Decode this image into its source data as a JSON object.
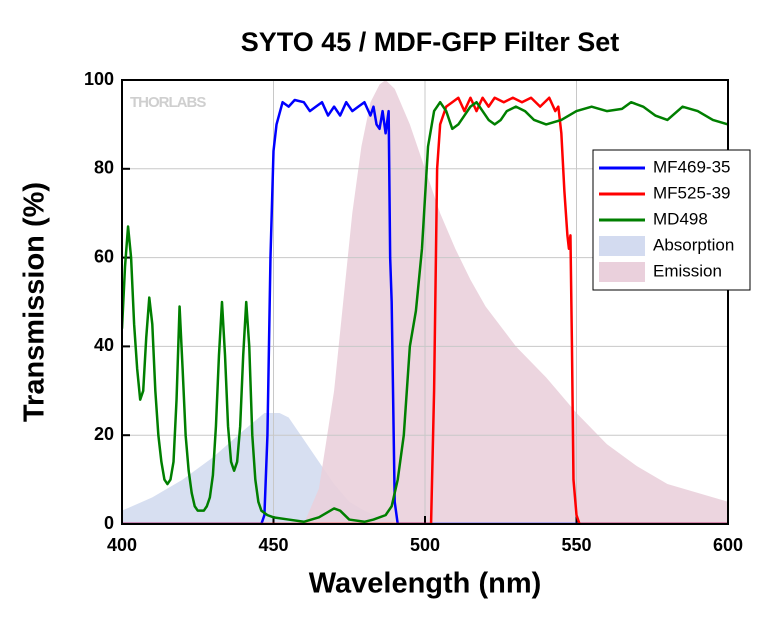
{
  "chart_data": {
    "type": "line",
    "title": "SYTO 45 / MDF-GFP Filter Set",
    "xlabel": "Wavelength (nm)",
    "ylabel": "Transmission (%)",
    "watermark": "THORLABS",
    "xlim": [
      400,
      600
    ],
    "xticks": [
      400,
      450,
      500,
      550,
      600
    ],
    "ylim": [
      0,
      100
    ],
    "yticks": [
      0,
      20,
      40,
      60,
      80,
      100
    ],
    "grid": true,
    "legend": "upper right",
    "series": [
      {
        "name": "MF469-35",
        "color": "#0000ff",
        "fill": false,
        "x": [
          400,
          446,
          447,
          448,
          449,
          450,
          451,
          453,
          455,
          457,
          460,
          462,
          464,
          466,
          468,
          470,
          472,
          474,
          476,
          478,
          480,
          482,
          483,
          484,
          485,
          486,
          487,
          488,
          488.5,
          489,
          490,
          491,
          600
        ],
        "values": [
          0,
          0,
          2,
          20,
          60,
          84,
          90,
          95,
          94,
          95.5,
          95,
          93,
          94,
          95,
          92,
          94,
          92,
          95,
          93,
          94,
          95,
          92,
          94,
          90,
          89,
          93,
          88,
          93,
          60,
          50,
          5,
          0,
          0
        ]
      },
      {
        "name": "MF525-39",
        "color": "#ff0000",
        "fill": false,
        "x": [
          400,
          502,
          503,
          504,
          505,
          507,
          509,
          511,
          513,
          515,
          517,
          519,
          521,
          523,
          526,
          529,
          532,
          535,
          538,
          541,
          543,
          544,
          545,
          546,
          547,
          547.5,
          548,
          548.5,
          549,
          550,
          551,
          600
        ],
        "values": [
          0,
          0,
          30,
          80,
          90,
          94,
          95,
          96,
          93,
          96,
          93,
          96,
          94,
          96,
          95,
          96,
          95,
          96,
          94,
          96,
          93,
          94,
          88,
          75,
          65,
          62,
          65,
          40,
          10,
          2,
          0,
          0
        ]
      },
      {
        "name": "MD498",
        "color": "#007f00",
        "fill": false,
        "x": [
          400,
          401,
          402,
          403,
          404,
          405,
          406,
          407,
          408,
          409,
          410,
          411,
          412,
          413,
          414,
          415,
          416,
          417,
          418,
          419,
          420,
          421,
          422,
          423,
          424,
          425,
          426,
          427,
          428,
          429,
          430,
          431,
          432,
          433,
          434,
          435,
          436,
          437,
          438,
          439,
          440,
          441,
          442,
          443,
          444,
          445,
          446,
          448,
          450,
          455,
          460,
          465,
          470,
          472,
          475,
          480,
          483,
          487,
          489,
          491,
          493,
          495,
          497,
          499,
          501,
          503,
          505,
          507,
          509,
          511,
          513,
          515,
          517,
          519,
          521,
          523,
          525,
          527,
          530,
          533,
          536,
          540,
          545,
          550,
          555,
          560,
          565,
          568,
          572,
          576,
          580,
          585,
          590,
          595,
          600
        ],
        "values": [
          44,
          58,
          67,
          60,
          45,
          35,
          28,
          30,
          42,
          51,
          45,
          30,
          20,
          14,
          10,
          9,
          10,
          14,
          28,
          49,
          35,
          20,
          12,
          7,
          4,
          3,
          3,
          3,
          4,
          6,
          11,
          22,
          38,
          50,
          38,
          22,
          14,
          12,
          14,
          22,
          38,
          50,
          40,
          20,
          10,
          5,
          3,
          2,
          1.5,
          1,
          0.5,
          1.5,
          3.5,
          3,
          1,
          0.5,
          1,
          2,
          4,
          10,
          20,
          40,
          48,
          62,
          85,
          93,
          95,
          93,
          89,
          90,
          92,
          94,
          95,
          93,
          91,
          90,
          91,
          93,
          94,
          93,
          91,
          90,
          91,
          93,
          94,
          93,
          93.5,
          95,
          94,
          92,
          91,
          94,
          93,
          91,
          90
        ]
      },
      {
        "name": "Absorption",
        "color": "#d3dbf0",
        "fill": true,
        "x": [
          400,
          410,
          420,
          430,
          440,
          447,
          452,
          455,
          460,
          465,
          470,
          475,
          480,
          485,
          490,
          500,
          600
        ],
        "values": [
          3,
          6,
          10,
          15,
          21,
          25,
          25,
          24,
          19,
          14,
          9,
          5,
          3,
          1.5,
          0.5,
          0,
          0
        ]
      },
      {
        "name": "Emission",
        "color": "#ead0dc",
        "fill": true,
        "x": [
          460,
          465,
          470,
          473,
          476,
          479,
          482,
          485,
          487,
          490,
          495,
          500,
          505,
          510,
          515,
          520,
          530,
          540,
          550,
          560,
          570,
          580,
          590,
          600
        ],
        "values": [
          0,
          8,
          30,
          50,
          70,
          85,
          95,
          99,
          100,
          98,
          90,
          80,
          70,
          62,
          55,
          49,
          40,
          33,
          25,
          18,
          13,
          9,
          7,
          5
        ]
      }
    ]
  }
}
